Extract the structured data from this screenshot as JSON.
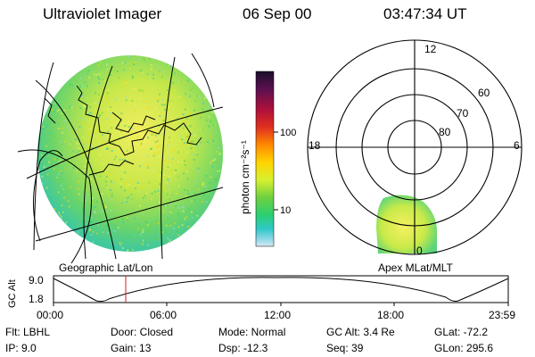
{
  "header": {
    "title": "Ultraviolet Imager",
    "date": "06 Sep 00",
    "time": "03:47:34 UT"
  },
  "geo_panel": {
    "label": "Geographic Lat/Lon"
  },
  "colorbar": {
    "unit_label": "photon cm⁻²s⁻¹",
    "ticks": [
      "100",
      "10"
    ],
    "colors_top_to_bottom": [
      "#1a0f2a",
      "#5a1050",
      "#b0103a",
      "#e03020",
      "#ff8a00",
      "#ffd400",
      "#d8f030",
      "#70d040",
      "#2ad070",
      "#30c8c8",
      "#8fd8e8",
      "#d8e8f0"
    ]
  },
  "polar_panel": {
    "label": "Apex MLat/MLT",
    "mlt_labels": [
      "12",
      "18",
      "6",
      "0"
    ],
    "lat_labels": [
      "60",
      "70",
      "80"
    ]
  },
  "timeline": {
    "axis_label": "GC Alt",
    "y_ticks": [
      "9.0",
      "1.8"
    ],
    "x_ticks": [
      "00:00",
      "06:00",
      "12:00",
      "18:00",
      "23:59"
    ],
    "current_marker_time": "03:47",
    "marker_color": "#cc2222"
  },
  "info": {
    "row1": {
      "flt": "Flt: LBHL",
      "door": "Door: Closed",
      "mode": "Mode: Normal",
      "gc_alt": "GC Alt: 3.4 Re",
      "glat": "GLat: -72.2"
    },
    "row2": {
      "ip": "IP:  9.0",
      "gain": "Gain: 13",
      "dsp": "Dsp:  -12.3",
      "seq": "Seq: 39",
      "glon": "GLon: 295.6"
    }
  }
}
